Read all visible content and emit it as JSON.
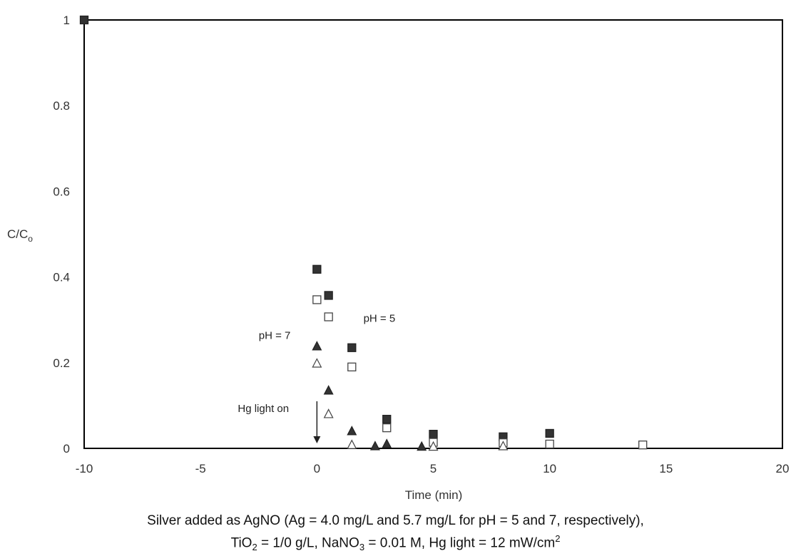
{
  "chart_data": {
    "type": "scatter",
    "xlabel": "Time (min)",
    "ylabel": "C/C",
    "ylabel_sub": "o",
    "xlim": [
      -10,
      20
    ],
    "ylim": [
      0,
      1
    ],
    "xticks": [
      -10,
      -5,
      0,
      5,
      10,
      15,
      20
    ],
    "yticks": [
      0,
      0.2,
      0.4,
      0.6,
      0.8,
      1
    ],
    "ytick_labels": [
      "0",
      "0.2",
      "0.4",
      "0.6",
      "0.8",
      "1"
    ],
    "grid": false,
    "series": [
      {
        "marker": "filled-square",
        "points": [
          [
            -10,
            1.0
          ],
          [
            0,
            0.418
          ],
          [
            0.5,
            0.357
          ],
          [
            1.5,
            0.235
          ],
          [
            3,
            0.068
          ],
          [
            5,
            0.033
          ],
          [
            8,
            0.027
          ],
          [
            10,
            0.035
          ]
        ]
      },
      {
        "marker": "open-square",
        "points": [
          [
            0,
            0.347
          ],
          [
            0.5,
            0.307
          ],
          [
            1.5,
            0.19
          ],
          [
            3,
            0.048
          ],
          [
            5,
            0.014
          ],
          [
            8,
            0.013
          ],
          [
            10,
            0.01
          ],
          [
            14,
            0.008
          ]
        ]
      },
      {
        "marker": "filled-triangle",
        "points": [
          [
            0,
            0.238
          ],
          [
            0.5,
            0.135
          ],
          [
            1.5,
            0.04
          ],
          [
            2.5,
            0.005
          ],
          [
            3,
            0.01
          ],
          [
            4.5,
            0.004
          ]
        ]
      },
      {
        "marker": "open-triangle",
        "points": [
          [
            0,
            0.198
          ],
          [
            0.5,
            0.08
          ],
          [
            1.5,
            0.008
          ],
          [
            5,
            0.004
          ],
          [
            8,
            0.005
          ]
        ]
      }
    ],
    "annotations": {
      "ph5": {
        "text": "pH = 5",
        "x": 2.0,
        "y": 0.295
      },
      "ph7": {
        "text": "pH = 7",
        "x": -2.5,
        "y": 0.255
      },
      "light": {
        "text": "Hg light on",
        "x": -3.4,
        "y": 0.085
      }
    },
    "arrow": {
      "x": 0,
      "y_from": 0.11,
      "y_to": 0.015
    },
    "caption": {
      "line1": "Silver added as AgNO (Ag = 4.0 mg/L and 5.7 mg/L for pH = 5 and 7, respectively),",
      "line2_a": "TiO",
      "line2_a_sub": "2",
      "line2_b": " = 1/0 g/L,  NaNO",
      "line2_b_sub": "3",
      "line2_c": " = 0.01 M, Hg light = 12 mW/cm",
      "line2_c_sup": "2"
    }
  }
}
